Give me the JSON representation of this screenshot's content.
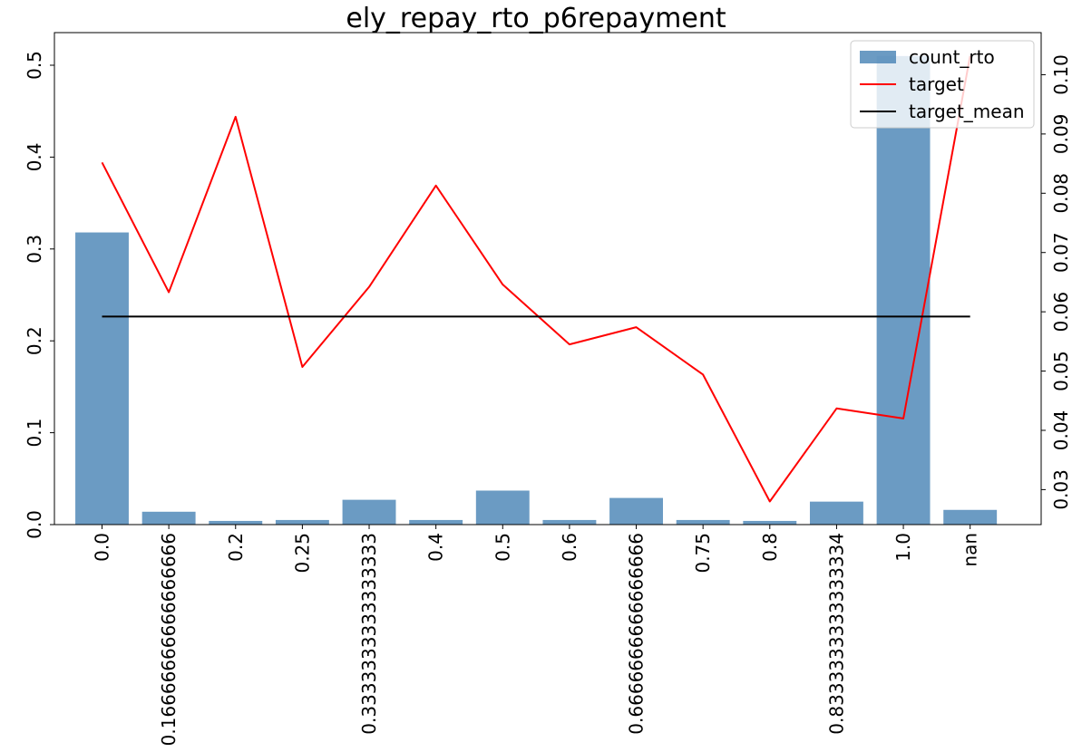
{
  "chart_data": {
    "type": "bar",
    "title": "ely_repay_rto_p6repayment",
    "xlabel": "",
    "ylabel": "",
    "categories": [
      "0.0",
      "0.16666666666666666",
      "0.2",
      "0.25",
      "0.3333333333333333",
      "0.4",
      "0.5",
      "0.6",
      "0.6666666666666666",
      "0.75",
      "0.8",
      "0.8333333333333334",
      "1.0",
      "nan"
    ],
    "series": [
      {
        "name": "count_rto",
        "axis": "left",
        "kind": "bar",
        "color": "#4682b4",
        "values": [
          0.318,
          0.014,
          0.004,
          0.005,
          0.027,
          0.005,
          0.037,
          0.005,
          0.029,
          0.005,
          0.004,
          0.025,
          0.51,
          0.016
        ]
      },
      {
        "name": "target",
        "axis": "right",
        "kind": "line",
        "color": "#ff0000",
        "values": [
          0.0852,
          0.0633,
          0.0929,
          0.0507,
          0.0642,
          0.0813,
          0.0646,
          0.0545,
          0.0574,
          0.0494,
          0.028,
          0.0437,
          0.042,
          0.1032
        ]
      },
      {
        "name": "target_mean",
        "axis": "right",
        "kind": "line",
        "color": "#000000",
        "values": [
          0.0592,
          0.0592,
          0.0592,
          0.0592,
          0.0592,
          0.0592,
          0.0592,
          0.0592,
          0.0592,
          0.0592,
          0.0592,
          0.0592,
          0.0592,
          0.0592
        ]
      }
    ],
    "y_left": {
      "ylim": [
        0,
        0.5355
      ],
      "ticks": [
        "0.0",
        "0.1",
        "0.2",
        "0.3",
        "0.4",
        "0.5"
      ]
    },
    "y_right": {
      "ylim": [
        0.0241,
        0.1071
      ],
      "ticks": [
        "0.03",
        "0.04",
        "0.05",
        "0.06",
        "0.07",
        "0.08",
        "0.09",
        "0.10"
      ]
    },
    "legend": {
      "position": "top-right",
      "entries": [
        "count_rto",
        "target",
        "target_mean"
      ]
    },
    "grid": false
  }
}
